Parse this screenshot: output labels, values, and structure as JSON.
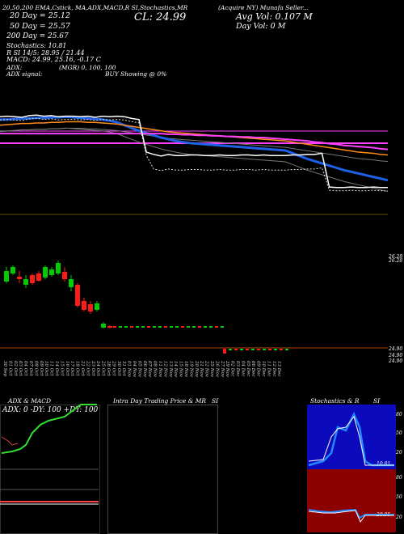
{
  "header": {
    "top_line": "20,50,200 EMA,Cstick, MA,ADX,MACD,R     SI,Stochastics,MR",
    "ticker_line": "(Acquire  NY) Munafa Seller...",
    "cl": "CL: 24.99",
    "avg_vol": "Avg Vol: 0.107 M",
    "day_vol": "Day Vol: 0    M",
    "ema20": "20  Day = 25.12",
    "ema50": "50  Day = 25.57",
    "ema200": "200  Day = 25.67",
    "stoch": "Stochastics: 10.81",
    "rsi_line": "R                SI 14/5: 28.95 / 21.44",
    "macd": "MACD: 24.99,  25.16,  -0.17 C",
    "adx": "ADX:",
    "mgr": "(MGR) 0,  100,  100",
    "adx_signal": "ADX  signal:",
    "buy_showing": "BUY Showing @ 0%"
  },
  "price_labels": {
    "right_top": "26.28",
    "right_top2": "26.28",
    "right_bottom1": "24.90",
    "right_bottom2": "24.90",
    "right_bottom3": "24.90"
  },
  "x_dates": [
    "30 Sep",
    "01 Oct",
    "02 Oct",
    "03 Oct",
    "04 Oct",
    "07 Oct",
    "08 Oct",
    "09 Oct",
    "10 Oct",
    "11 Oct",
    "14 Oct",
    "15 Oct",
    "16 Oct",
    "17 Oct",
    "18 Oct",
    "21 Oct",
    "22 Oct",
    "23 Oct",
    "24 Oct",
    "25 Oct",
    "28 Oct",
    "29 Oct",
    "30 Oct",
    "31 Oct",
    "01 Nov",
    "04 Nov",
    "05 Nov",
    "06 Nov",
    "07 Nov",
    "08 Nov",
    "11 Nov",
    "12 Nov",
    "13 Nov",
    "14 Nov",
    "15 Nov",
    "18 Nov",
    "19 Nov",
    "20 Nov",
    "21 Nov",
    "22 Nov",
    "25 Nov",
    "26 Nov",
    "27 Nov",
    "29 Nov",
    "02 Dec",
    "03 Dec",
    "04 Dec",
    "05 Dec",
    "06 Dec",
    "09 Dec",
    "10 Dec",
    "11 Dec",
    "12 Dec",
    "13 Dec"
  ],
  "panels": {
    "adx_title": "ADX  & MACD",
    "adx_values": "ADX: 0  -DY: 100  +DY: 100",
    "intraday_title": "Intra  Day Trading Price  & MR",
    "si_title1": "SI",
    "stoch_title": "Stochastics & R",
    "si_title2": "SI",
    "stoch_ticks": [
      "80",
      "50",
      "20"
    ],
    "stoch_last": "10.81",
    "rsi_ticks": [
      "80",
      "50",
      "20"
    ],
    "rsi_last": "28.95"
  },
  "colors": {
    "ema20": "#1e60e6",
    "ema50": "#ff8c1a",
    "ema200": "#ff40ff",
    "price": "#ffffff",
    "up": "#00cc00",
    "down": "#ff1a1a",
    "stoch_bg": "#0b0bbd",
    "rsi_bg": "#8c0000"
  },
  "chart_data": {
    "type": "line",
    "title": "",
    "series": [
      {
        "name": "20  Day",
        "values": [
          26.2,
          26.2,
          26.21,
          26.22,
          26.22,
          26.23,
          26.23,
          26.24,
          26.24,
          26.25,
          26.24,
          26.23,
          26.22,
          26.21,
          26.2,
          26.18,
          26.15,
          26.1,
          26.05,
          26.0,
          25.96,
          25.92,
          25.88,
          25.85,
          25.82,
          25.8,
          25.78,
          25.77,
          25.76,
          25.75,
          25.74,
          25.73,
          25.72,
          25.71,
          25.7,
          25.69,
          25.68,
          25.67,
          25.66,
          25.65,
          25.6,
          25.55,
          25.5,
          25.46,
          25.42,
          25.38,
          25.34,
          25.3,
          25.27,
          25.24,
          25.21,
          25.18,
          25.15,
          25.12
        ]
      },
      {
        "name": "50  Day",
        "values": [
          26.1,
          26.11,
          26.12,
          26.13,
          26.13,
          26.14,
          26.14,
          26.15,
          26.15,
          26.16,
          26.16,
          26.16,
          26.15,
          26.15,
          26.14,
          26.13,
          26.12,
          26.1,
          26.08,
          26.06,
          26.04,
          26.02,
          26.0,
          25.98,
          25.97,
          25.96,
          25.95,
          25.94,
          25.93,
          25.92,
          25.91,
          25.9,
          25.89,
          25.88,
          25.87,
          25.86,
          25.85,
          25.84,
          25.83,
          25.82,
          25.8,
          25.78,
          25.76,
          25.74,
          25.72,
          25.7,
          25.68,
          25.66,
          25.64,
          25.62,
          25.61,
          25.6,
          25.58,
          25.57
        ]
      },
      {
        "name": "200  Day",
        "values": [
          25.95,
          25.95,
          25.95,
          25.95,
          25.95,
          25.95,
          25.95,
          25.95,
          25.95,
          25.95,
          25.95,
          25.95,
          25.95,
          25.95,
          25.95,
          25.95,
          25.95,
          25.95,
          25.95,
          25.95,
          25.95,
          25.95,
          25.95,
          25.94,
          25.94,
          25.93,
          25.93,
          25.92,
          25.92,
          25.91,
          25.91,
          25.9,
          25.9,
          25.89,
          25.89,
          25.88,
          25.88,
          25.87,
          25.86,
          25.85,
          25.84,
          25.83,
          25.82,
          25.8,
          25.79,
          25.77,
          25.76,
          25.74,
          25.73,
          25.72,
          25.71,
          25.7,
          25.68,
          25.67
        ]
      },
      {
        "name": "Price",
        "values": [
          26.25,
          26.26,
          26.25,
          26.24,
          26.27,
          26.28,
          26.26,
          26.27,
          26.25,
          26.26,
          26.26,
          26.25,
          26.26,
          26.24,
          26.26,
          26.25,
          26.26,
          26.25,
          26.22,
          26.2,
          25.62,
          25.58,
          25.55,
          25.58,
          25.56,
          25.56,
          25.57,
          25.57,
          25.56,
          25.56,
          25.57,
          25.56,
          25.56,
          25.57,
          25.57,
          25.56,
          25.57,
          25.56,
          25.56,
          25.56,
          25.57,
          25.57,
          25.58,
          25.58,
          25.6,
          25.0,
          24.99,
          24.99,
          25.0,
          24.99,
          24.99,
          25.0,
          24.99,
          24.99
        ]
      }
    ],
    "ylim": [
      24.8,
      26.6
    ],
    "price_label": "24.99"
  }
}
